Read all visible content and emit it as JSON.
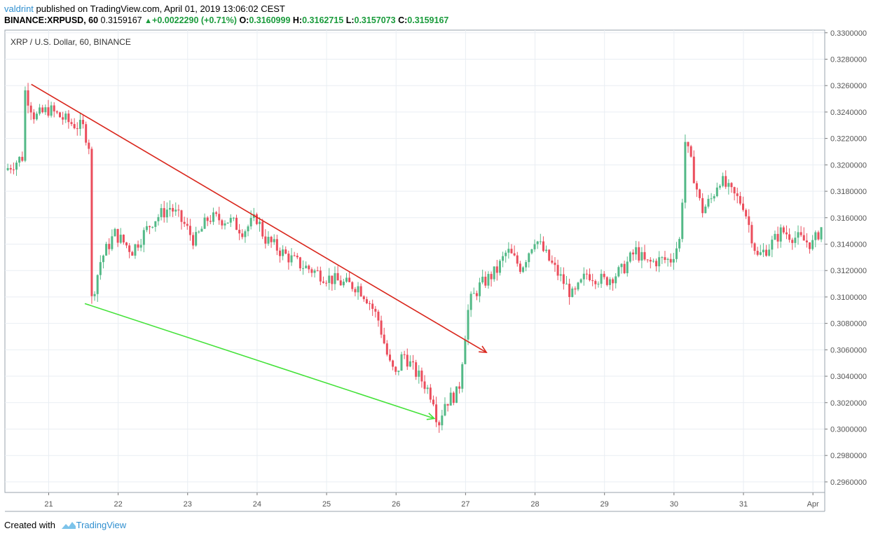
{
  "header": {
    "author": "valdrint",
    "published_text": "published on TradingView.com, April 01, 2019 13:06:02 CEST",
    "symbol": "BINANCE:XRPUSD, 60",
    "last": "0.3159167",
    "change": "+0.0022290 (+0.71%)",
    "o_label": "O:",
    "o_value": "0.3160999",
    "h_label": "H:",
    "h_value": "0.3162715",
    "l_label": "L:",
    "l_value": "0.3157073",
    "c_label": "C:",
    "c_value": "0.3159167"
  },
  "footer": {
    "created_with": "Created with",
    "brand": "TradingView"
  },
  "colors": {
    "up": "#53b987",
    "down": "#eb4d5c",
    "red_line": "#d9261c",
    "green_line": "#45e23a",
    "grid": "#e9eef3",
    "axis_text": "#555555"
  },
  "chart_data": {
    "type": "candlestick",
    "title": "XRP / U.S. Dollar, 60, BINANCE",
    "x_ticks": [
      "21",
      "22",
      "23",
      "24",
      "25",
      "26",
      "27",
      "28",
      "29",
      "30",
      "31",
      "Apr"
    ],
    "y_ticks": [
      "0.2960000",
      "0.2980000",
      "0.3000000",
      "0.3020000",
      "0.3040000",
      "0.3060000",
      "0.3080000",
      "0.3100000",
      "0.3120000",
      "0.3140000",
      "0.3160000",
      "0.3180000",
      "0.3200000",
      "0.3220000",
      "0.3240000",
      "0.3260000",
      "0.3280000",
      "0.3300000"
    ],
    "ylim": [
      0.2952,
      0.3302
    ],
    "xlim_days": [
      20.37,
      32.17
    ],
    "grid": true,
    "price_path": [
      [
        20.37,
        0.3196
      ],
      [
        20.62,
        0.3206
      ],
      [
        20.66,
        0.3256
      ],
      [
        20.8,
        0.3236
      ],
      [
        21.0,
        0.3242
      ],
      [
        21.3,
        0.3232
      ],
      [
        21.5,
        0.3228
      ],
      [
        21.58,
        0.3215
      ],
      [
        21.62,
        0.3098
      ],
      [
        21.75,
        0.3128
      ],
      [
        21.95,
        0.3148
      ],
      [
        22.2,
        0.3135
      ],
      [
        22.5,
        0.3158
      ],
      [
        22.75,
        0.3168
      ],
      [
        22.95,
        0.3155
      ],
      [
        23.1,
        0.3142
      ],
      [
        23.3,
        0.316
      ],
      [
        23.6,
        0.3158
      ],
      [
        23.8,
        0.315
      ],
      [
        24.0,
        0.316
      ],
      [
        24.1,
        0.3145
      ],
      [
        24.4,
        0.3132
      ],
      [
        24.6,
        0.3125
      ],
      [
        24.8,
        0.312
      ],
      [
        25.0,
        0.3115
      ],
      [
        25.25,
        0.311
      ],
      [
        25.45,
        0.3108
      ],
      [
        25.6,
        0.3098
      ],
      [
        25.75,
        0.3082
      ],
      [
        25.9,
        0.305
      ],
      [
        26.0,
        0.304
      ],
      [
        26.1,
        0.3058
      ],
      [
        26.25,
        0.3045
      ],
      [
        26.4,
        0.3035
      ],
      [
        26.55,
        0.3022
      ],
      [
        26.6,
        0.3002
      ],
      [
        26.7,
        0.302
      ],
      [
        26.9,
        0.3028
      ],
      [
        26.98,
        0.3066
      ],
      [
        27.05,
        0.3095
      ],
      [
        27.2,
        0.3108
      ],
      [
        27.45,
        0.312
      ],
      [
        27.6,
        0.3135
      ],
      [
        27.8,
        0.3122
      ],
      [
        28.0,
        0.3145
      ],
      [
        28.2,
        0.3128
      ],
      [
        28.4,
        0.3112
      ],
      [
        28.55,
        0.31
      ],
      [
        28.75,
        0.3118
      ],
      [
        29.0,
        0.3112
      ],
      [
        29.25,
        0.312
      ],
      [
        29.45,
        0.3135
      ],
      [
        29.6,
        0.3125
      ],
      [
        29.8,
        0.3128
      ],
      [
        29.95,
        0.3128
      ],
      [
        30.1,
        0.3145
      ],
      [
        30.15,
        0.322
      ],
      [
        30.25,
        0.32
      ],
      [
        30.4,
        0.3165
      ],
      [
        30.55,
        0.3175
      ],
      [
        30.65,
        0.319
      ],
      [
        30.8,
        0.318
      ],
      [
        31.0,
        0.317
      ],
      [
        31.1,
        0.315
      ],
      [
        31.2,
        0.313
      ],
      [
        31.4,
        0.314
      ],
      [
        31.55,
        0.315
      ],
      [
        31.75,
        0.3145
      ],
      [
        32.0,
        0.314
      ],
      [
        32.17,
        0.3158
      ]
    ],
    "trendlines": [
      {
        "name": "resistance",
        "from": [
          20.75,
          0.3261
        ],
        "to": [
          27.3,
          0.3058
        ],
        "arrow": true,
        "color": "red"
      },
      {
        "name": "support",
        "from": [
          21.52,
          0.3095
        ],
        "to": [
          26.55,
          0.3008
        ],
        "arrow": true,
        "color": "green"
      }
    ]
  }
}
